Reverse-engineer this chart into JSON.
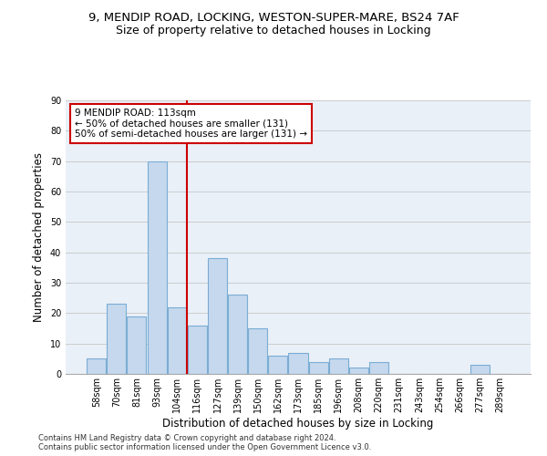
{
  "title1": "9, MENDIP ROAD, LOCKING, WESTON-SUPER-MARE, BS24 7AF",
  "title2": "Size of property relative to detached houses in Locking",
  "xlabel": "Distribution of detached houses by size in Locking",
  "ylabel": "Number of detached properties",
  "categories": [
    "58sqm",
    "70sqm",
    "81sqm",
    "93sqm",
    "104sqm",
    "116sqm",
    "127sqm",
    "139sqm",
    "150sqm",
    "162sqm",
    "173sqm",
    "185sqm",
    "196sqm",
    "208sqm",
    "220sqm",
    "231sqm",
    "243sqm",
    "254sqm",
    "266sqm",
    "277sqm",
    "289sqm"
  ],
  "values": [
    5,
    23,
    19,
    70,
    22,
    16,
    38,
    26,
    15,
    6,
    7,
    4,
    5,
    2,
    4,
    0,
    0,
    0,
    0,
    3,
    0
  ],
  "bar_color": "#c5d8ed",
  "bar_edge_color": "#7aadd4",
  "vline_color": "#cc0000",
  "annotation_text": "9 MENDIP ROAD: 113sqm\n← 50% of detached houses are smaller (131)\n50% of semi-detached houses are larger (131) →",
  "annotation_box_facecolor": "#ffffff",
  "annotation_box_edgecolor": "#cc0000",
  "ylim": [
    0,
    90
  ],
  "yticks": [
    0,
    10,
    20,
    30,
    40,
    50,
    60,
    70,
    80,
    90
  ],
  "grid_color": "#cccccc",
  "bg_color": "#eaf0f8",
  "footer1": "Contains HM Land Registry data © Crown copyright and database right 2024.",
  "footer2": "Contains public sector information licensed under the Open Government Licence v3.0.",
  "title1_fontsize": 9.5,
  "title2_fontsize": 9,
  "tick_fontsize": 7,
  "ylabel_fontsize": 8.5,
  "xlabel_fontsize": 8.5,
  "annotation_fontsize": 7.5,
  "footer_fontsize": 6,
  "vline_pos": 4.5
}
